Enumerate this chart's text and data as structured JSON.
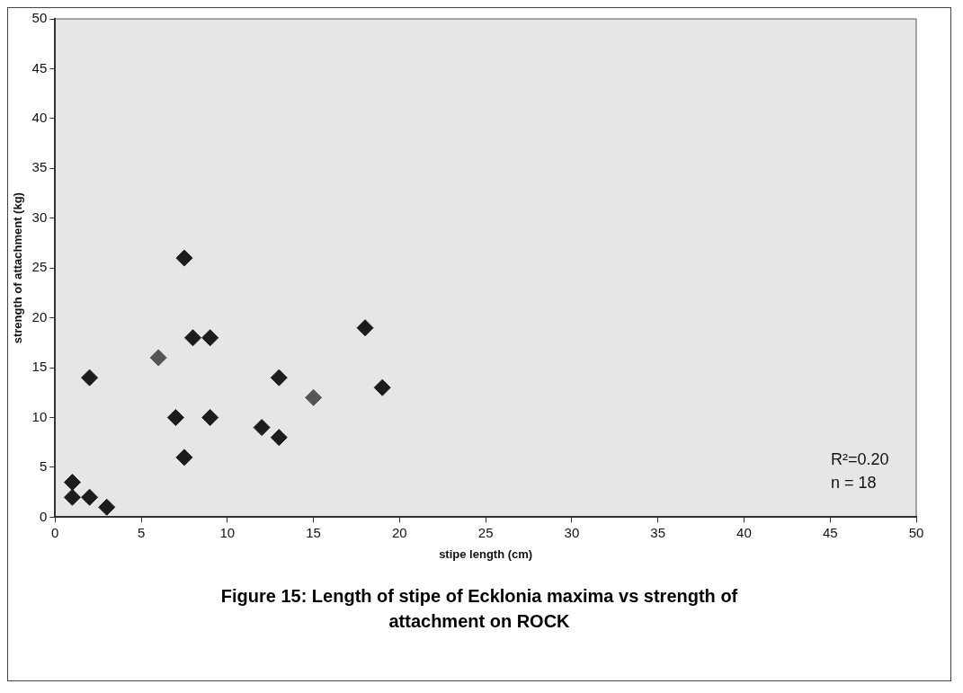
{
  "chart_data": {
    "type": "scatter",
    "title": "Figure 15: Length of stipe of Ecklonia maxima vs strength of attachment on ROCK",
    "xlabel": "stipe length (cm)",
    "ylabel": "strength of attachment (kg)",
    "x": [
      1,
      1,
      2,
      3,
      2,
      6,
      7.5,
      8,
      9,
      7,
      9,
      7.5,
      12,
      13,
      13,
      15,
      18,
      19
    ],
    "values": [
      3.5,
      2,
      2,
      1,
      14,
      16,
      26,
      18,
      18,
      10,
      10,
      6,
      9,
      14,
      8,
      12,
      19,
      13
    ],
    "colors": [
      "#1c1c1c",
      "#1c1c1c",
      "#1c1c1c",
      "#1c1c1c",
      "#1c1c1c",
      "#555555",
      "#1c1c1c",
      "#1c1c1c",
      "#1c1c1c",
      "#1c1c1c",
      "#1c1c1c",
      "#1c1c1c",
      "#1c1c1c",
      "#1c1c1c",
      "#1c1c1c",
      "#555555",
      "#1c1c1c",
      "#1c1c1c"
    ],
    "xlim": [
      0,
      50
    ],
    "xticks": [
      0,
      5,
      10,
      15,
      20,
      25,
      30,
      35,
      40,
      45,
      50
    ],
    "ylim": [
      0,
      50
    ],
    "yticks": [
      0,
      5,
      10,
      15,
      20,
      25,
      30,
      35,
      40,
      45,
      50
    ],
    "grid": false,
    "legend": false,
    "marker": "diamond",
    "annotations": [
      "R²=0.20",
      "n = 18"
    ]
  }
}
